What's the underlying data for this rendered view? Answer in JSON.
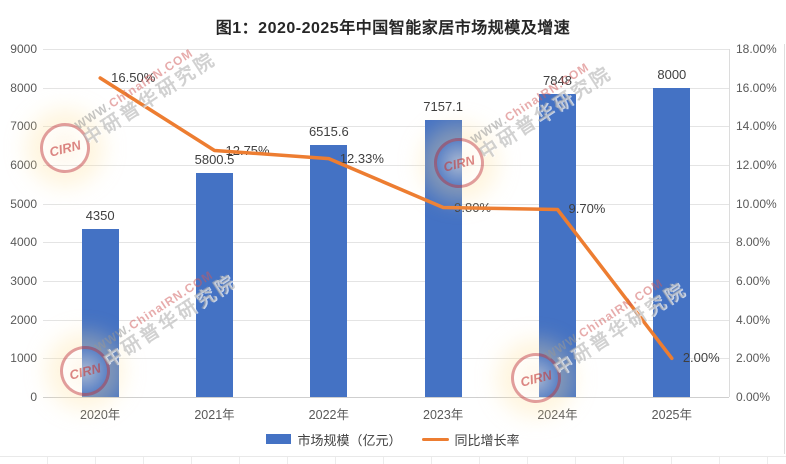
{
  "title": "图1：2020-2025年中国智能家居市场规模及增速",
  "chart_data": {
    "type": "bar+line combo",
    "title": "图1：2020-2025年中国智能家居市场规模及增速",
    "categories": [
      "2020年",
      "2021年",
      "2022年",
      "2023年",
      "2024年",
      "2025年"
    ],
    "series": [
      {
        "name": "市场规模（亿元）",
        "type": "bar",
        "axis": "left",
        "values": [
          4350,
          5800.5,
          6515.6,
          7157.1,
          7848,
          8000
        ],
        "labels": [
          "4350",
          "5800.5",
          "6515.6",
          "7157.1",
          "7848",
          "8000"
        ],
        "color": "#4472C4"
      },
      {
        "name": "同比增长率",
        "type": "line",
        "axis": "right",
        "values": [
          16.5,
          12.75,
          12.33,
          9.8,
          9.7,
          2.0
        ],
        "labels": [
          "16.50%",
          "12.75%",
          "12.33%",
          "9.80%",
          "9.70%",
          "2.00%"
        ],
        "color": "#ED7D31"
      }
    ],
    "left_axis": {
      "min": 0,
      "max": 9000,
      "step": 1000,
      "ticks": [
        "0",
        "1000",
        "2000",
        "3000",
        "4000",
        "5000",
        "6000",
        "7000",
        "8000",
        "9000"
      ]
    },
    "right_axis": {
      "min": 0,
      "max": 18,
      "step": 2,
      "ticks": [
        "0.00%",
        "2.00%",
        "4.00%",
        "6.00%",
        "8.00%",
        "10.00%",
        "12.00%",
        "14.00%",
        "16.00%",
        "18.00%"
      ]
    },
    "grid": "horizontal gridlines on",
    "legend_position": "bottom"
  },
  "colors": {
    "bar": "#4472C4",
    "line": "#ED7D31",
    "axis_text": "#595959",
    "data_label_text": "#3f3f3f",
    "gridline": "#e4e4e4"
  },
  "watermark": {
    "url_prefix": "WWW.",
    "url_main": "ChinaIRN.COM",
    "brand": "中研普华研究院",
    "badge": "CIRN"
  }
}
